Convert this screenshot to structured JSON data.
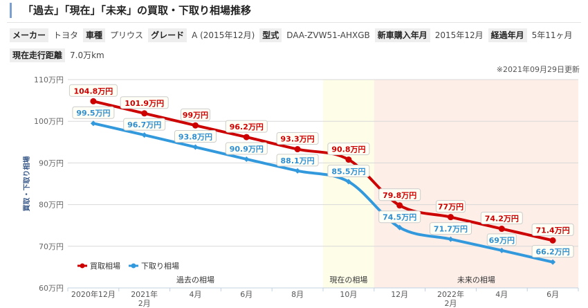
{
  "title": "「過去」「現在」「未来」の買取・下取り相場推移",
  "specs": [
    {
      "label": "メーカー",
      "value": "トヨタ"
    },
    {
      "label": "車種",
      "value": "プリウス"
    },
    {
      "label": "グレード",
      "value": "A (2015年12月)"
    },
    {
      "label": "型式",
      "value": "DAA-ZVW51-AHXGB"
    },
    {
      "label": "新車購入年月",
      "value": "2015年12月"
    },
    {
      "label": "経過年月",
      "value": "5年11ヶ月"
    },
    {
      "label": "現在走行距離",
      "value": "7.0万km"
    }
  ],
  "updated": "※2021年09月29日更新",
  "chart_data": {
    "type": "line",
    "ylabel": "買取・下取り相場",
    "ylim": [
      60,
      110
    ],
    "yticks": [
      60,
      70,
      80,
      90,
      100,
      110
    ],
    "ytick_labels": [
      "60万円",
      "70万円",
      "80万円",
      "90万円",
      "100万円",
      "110万円"
    ],
    "categories": [
      "2020年12月",
      "2021年\n2月",
      "4月",
      "6月",
      "8月",
      "10月",
      "12月",
      "2022年\n2月",
      "4月",
      "6月"
    ],
    "regions": [
      {
        "label": "過去の相場",
        "from": 0,
        "to": 4,
        "color": "#ffffff"
      },
      {
        "label": "現在の相場",
        "from": 5,
        "to": 5,
        "color": "#fefde8"
      },
      {
        "label": "未来の相場",
        "from": 6,
        "to": 9,
        "color": "#fdeee8"
      }
    ],
    "series": [
      {
        "name": "買取相場",
        "color": "#cc0000",
        "values": [
          104.8,
          101.9,
          99,
          96.2,
          93.3,
          90.8,
          79.8,
          77,
          74.2,
          71.4
        ],
        "labels": [
          "104.8万円",
          "101.9万円",
          "99万円",
          "96.2万円",
          "93.3万円",
          "90.8万円",
          "79.8万円",
          "77万円",
          "74.2万円",
          "71.4万円"
        ]
      },
      {
        "name": "下取り相場",
        "color": "#3399dd",
        "values": [
          99.5,
          96.7,
          93.8,
          90.9,
          88.1,
          85.5,
          74.5,
          71.7,
          69,
          66.2
        ],
        "labels": [
          "99.5万円",
          "96.7万円",
          "93.8万円",
          "90.9万円",
          "88.1万円",
          "85.5万円",
          "74.5万円",
          "71.7万円",
          "69万円",
          "66.2万円"
        ]
      }
    ],
    "legend": "bottom-left"
  }
}
